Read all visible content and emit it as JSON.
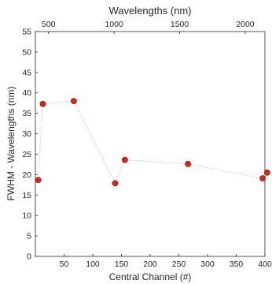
{
  "chart_data": {
    "type": "scatter",
    "title": "",
    "xlabel": "Central Channel (#)",
    "ylabel": "FWHM - Wavelengths (nm)",
    "top_xlabel": "Wavelengths (nm)",
    "xlim": [
      0,
      400
    ],
    "ylim": [
      0,
      55
    ],
    "top_xlim": [
      400,
      2150
    ],
    "xticks": [
      50,
      100,
      150,
      200,
      250,
      300,
      350,
      400
    ],
    "yticks": [
      0,
      5,
      10,
      15,
      20,
      25,
      30,
      35,
      40,
      45,
      50,
      55
    ],
    "top_xticks": [
      500,
      1000,
      1500,
      2000
    ],
    "grid": false,
    "marker_color": "#d62718",
    "marker_edge": "#7a1008",
    "line_color": "#b8d0dc",
    "series": [
      {
        "x": [
          5,
          13,
          67,
          139,
          156,
          266,
          396,
          404
        ],
        "y": [
          18.7,
          37.3,
          38.0,
          17.9,
          23.6,
          22.6,
          19.1,
          20.5
        ]
      }
    ]
  }
}
